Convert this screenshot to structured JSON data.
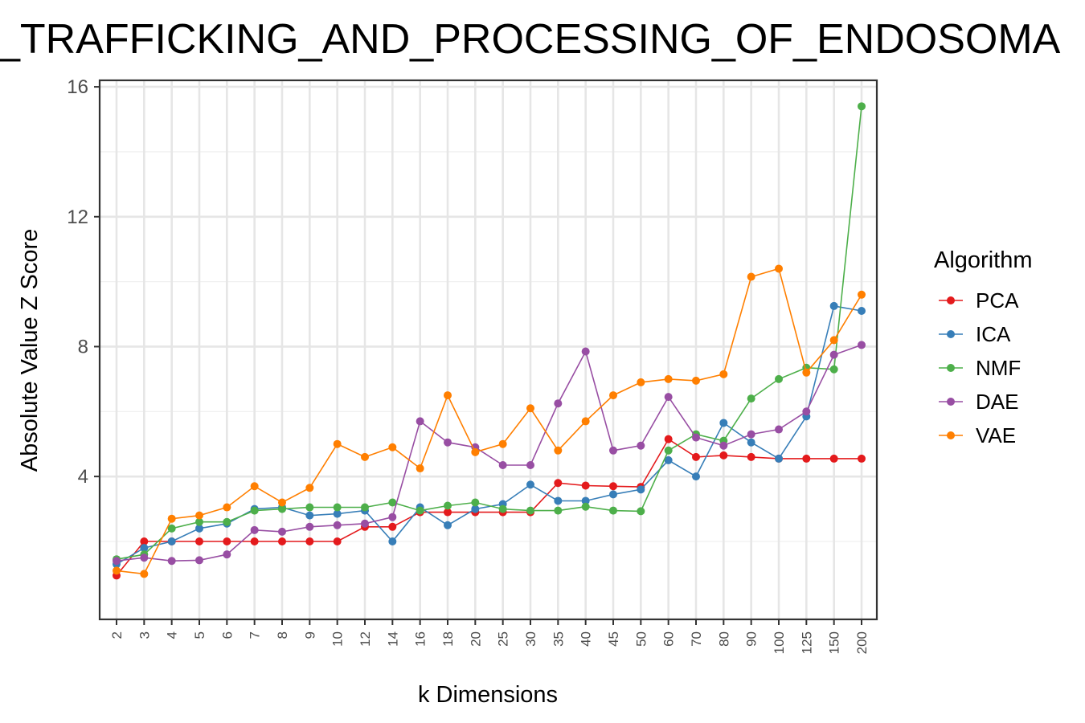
{
  "chart_data": {
    "type": "line",
    "title": "_TRAFFICKING_AND_PROCESSING_OF_ENDOSOMA",
    "xlabel": "k Dimensions",
    "ylabel": "Absolute Value Z Score",
    "categories": [
      "2",
      "3",
      "4",
      "5",
      "6",
      "7",
      "8",
      "9",
      "10",
      "12",
      "14",
      "16",
      "18",
      "20",
      "25",
      "30",
      "35",
      "40",
      "45",
      "50",
      "60",
      "70",
      "80",
      "90",
      "100",
      "125",
      "150",
      "200"
    ],
    "ylim": [
      -0.4,
      16.2
    ],
    "yticks": [
      4,
      8,
      12,
      16
    ],
    "ytick_labels": [
      "4",
      "8",
      "12",
      "16"
    ],
    "grid": true,
    "legend": {
      "title": "Algorithm",
      "position": "right"
    },
    "series": [
      {
        "name": "PCA",
        "color": "#e41a1c",
        "values": [
          0.95,
          2.0,
          2.0,
          2.0,
          2.0,
          2.0,
          2.0,
          2.0,
          2.0,
          2.45,
          2.45,
          2.9,
          2.9,
          2.9,
          2.9,
          2.9,
          3.8,
          3.72,
          3.7,
          3.68,
          5.15,
          4.6,
          4.65,
          4.6,
          4.55,
          4.55,
          4.55,
          4.55
        ]
      },
      {
        "name": "ICA",
        "color": "#377eb8",
        "values": [
          1.3,
          1.8,
          2.0,
          2.4,
          2.55,
          3.0,
          3.05,
          2.8,
          2.85,
          2.95,
          2.0,
          3.05,
          2.5,
          3.0,
          3.15,
          3.75,
          3.25,
          3.25,
          3.45,
          3.6,
          4.5,
          4.0,
          5.65,
          5.05,
          4.55,
          5.85,
          9.25,
          9.1
        ]
      },
      {
        "name": "NMF",
        "color": "#4daf4a",
        "values": [
          1.45,
          1.6,
          2.4,
          2.6,
          2.6,
          2.95,
          3.0,
          3.05,
          3.05,
          3.05,
          3.2,
          2.95,
          3.1,
          3.2,
          3.0,
          2.95,
          2.95,
          3.07,
          2.95,
          2.93,
          4.8,
          5.3,
          5.1,
          6.4,
          7.0,
          7.35,
          7.3,
          15.4
        ]
      },
      {
        "name": "DAE",
        "color": "#984ea3",
        "values": [
          1.4,
          1.5,
          1.4,
          1.42,
          1.6,
          2.35,
          2.3,
          2.45,
          2.5,
          2.55,
          2.75,
          5.7,
          5.05,
          4.9,
          4.35,
          4.35,
          6.25,
          7.85,
          4.8,
          4.95,
          6.45,
          5.2,
          4.95,
          5.3,
          5.45,
          6.0,
          7.75,
          8.05
        ]
      },
      {
        "name": "VAE",
        "color": "#ff7f00",
        "values": [
          1.1,
          1.0,
          2.7,
          2.8,
          3.05,
          3.7,
          3.2,
          3.65,
          5.0,
          4.6,
          4.9,
          4.25,
          6.5,
          4.75,
          5.0,
          6.1,
          4.8,
          5.7,
          6.5,
          6.9,
          7.0,
          6.95,
          7.15,
          10.15,
          10.4,
          7.2,
          8.2,
          9.6
        ]
      }
    ]
  }
}
